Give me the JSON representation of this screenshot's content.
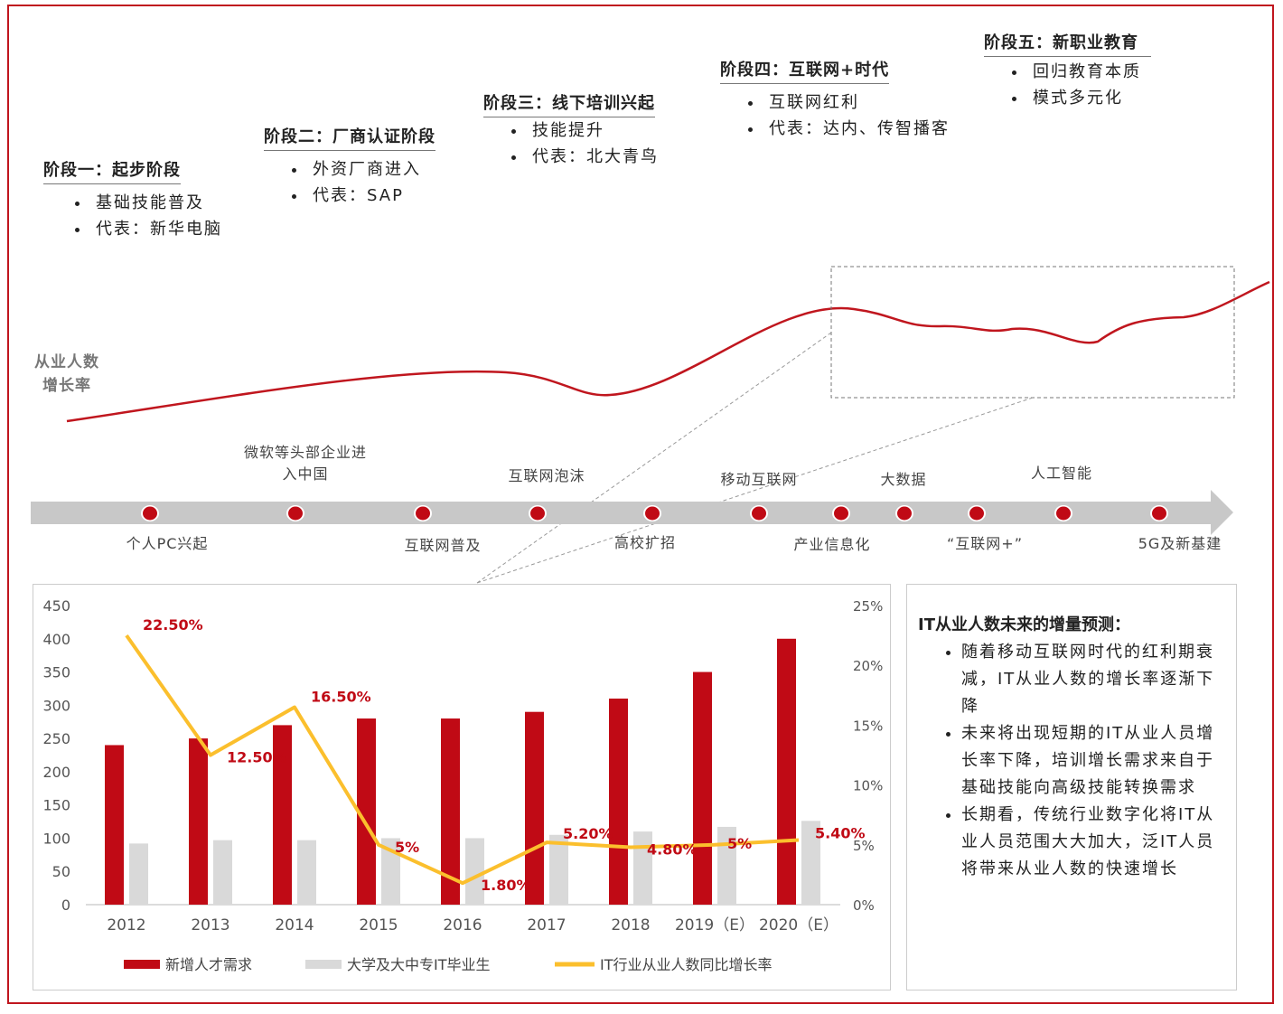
{
  "stages": [
    {
      "title": "阶段一：起步阶段",
      "items": [
        "基础技能普及",
        "代表：新华电脑"
      ]
    },
    {
      "title": "阶段二：厂商认证阶段",
      "items": [
        "外资厂商进入",
        "代表：SAP"
      ]
    },
    {
      "title": "阶段三：线下培训兴起",
      "items": [
        "技能提升",
        "代表：北大青鸟"
      ]
    },
    {
      "title": "阶段四：互联网+时代",
      "items": [
        "互联网红利",
        "代表：达内、传智播客"
      ]
    },
    {
      "title": "阶段五：新职业教育",
      "items": [
        "回归教育本质",
        "模式多元化"
      ]
    }
  ],
  "curve_label_1": "从业人数",
  "curve_label_2": "增长率",
  "timeline": {
    "above": [
      {
        "l1": "微软等头部企业进",
        "l2": "入中国"
      },
      {
        "l1": "互联网泡沫"
      },
      {
        "l1": "移动互联网"
      },
      {
        "l1": "大数据"
      },
      {
        "l1": "人工智能"
      }
    ],
    "below": [
      "个人PC兴起",
      "互联网普及",
      "高校扩招",
      "产业信息化",
      "“互联网+”",
      "5G及新基建"
    ]
  },
  "side_text": {
    "title": "IT从业人数未来的增量预测：",
    "bullets": [
      "随着移动互联网时代的红利期衰减，IT从业人数的增长率逐渐下降",
      "未来将出现短期的IT从业人员增长率下降，培训增长需求来自于基础技能向高级技能转换需求",
      "长期看，传统行业数字化将IT从业人员范围大大加大，泛IT人员将带来从业人数的快速增长"
    ]
  },
  "chart_data": {
    "type": "bar",
    "categories": [
      "2012",
      "2013",
      "2014",
      "2015",
      "2016",
      "2017",
      "2018",
      "2019（E）",
      "2020（E）"
    ],
    "series": [
      {
        "name": "新增人才需求",
        "type": "bar",
        "axis": "left",
        "color": "#c00a15",
        "values": [
          240,
          250,
          270,
          280,
          280,
          290,
          310,
          350,
          400
        ]
      },
      {
        "name": "大学及大中专IT毕业生",
        "type": "bar",
        "axis": "left",
        "color": "#d9d9d9",
        "values": [
          92,
          97,
          97,
          100,
          100,
          105,
          110,
          117,
          126
        ]
      },
      {
        "name": "IT行业从业人数同比增长率",
        "type": "line",
        "axis": "right",
        "color": "#fbbf2d",
        "values": [
          22.5,
          12.5,
          16.5,
          5,
          1.8,
          5.2,
          4.8,
          5,
          5.4
        ],
        "labels": [
          "22.50%",
          "12.50%",
          "16.50%",
          "5%",
          "1.80%",
          "5.20%",
          "4.80%",
          "5%",
          "5.40%"
        ]
      }
    ],
    "ylim": [
      0,
      450
    ],
    "yticks": [
      "0",
      "50",
      "100",
      "150",
      "200",
      "250",
      "300",
      "350",
      "400",
      "450"
    ],
    "y2lim": [
      0,
      25
    ],
    "y2ticks": [
      "0%",
      "5%",
      "10%",
      "15%",
      "20%",
      "25%"
    ],
    "legend": "bottom"
  }
}
